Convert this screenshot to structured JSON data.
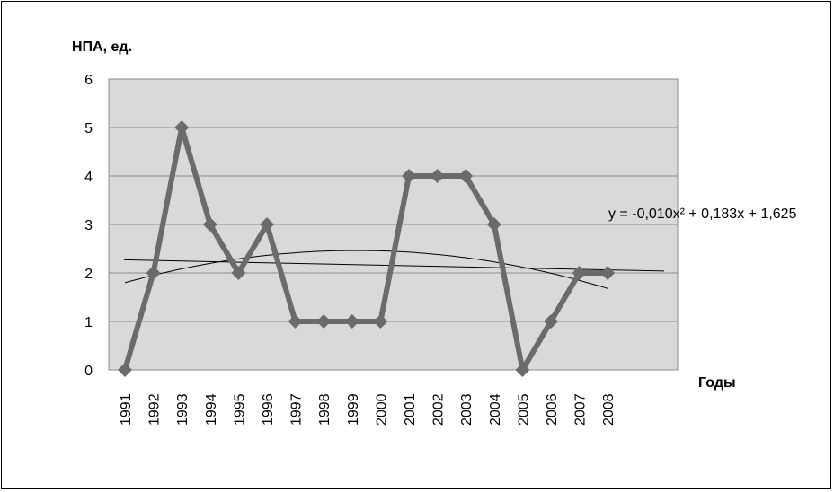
{
  "chart_data": {
    "type": "line",
    "ylabel": "НПА, ед.",
    "xlabel": "Годы",
    "categories": [
      "1991",
      "1992",
      "1993",
      "1994",
      "1995",
      "1996",
      "1997",
      "1998",
      "1999",
      "2000",
      "2001",
      "2002",
      "2003",
      "2004",
      "2005",
      "2006",
      "2007",
      "2008"
    ],
    "series": [
      {
        "values": [
          0,
          2,
          5,
          3,
          2,
          3,
          1,
          1,
          1,
          1,
          4,
          4,
          4,
          3,
          0,
          1,
          2,
          2
        ]
      }
    ],
    "trendlines": {
      "linear": {
        "start": 2.27,
        "end": 2.04
      },
      "polynomial": {
        "a": -0.01,
        "b": 0.183,
        "c": 1.625
      }
    },
    "equation_label": "y = -0,010x² + 0,183x + 1,625",
    "yticks": [
      "0",
      "1",
      "2",
      "3",
      "4",
      "5",
      "6"
    ],
    "ylim": [
      0,
      6
    ],
    "grid": true,
    "colors": {
      "series": "#6b6b6b",
      "plot_bg": "#d9d9d9",
      "grid": "#8c8c8c",
      "trend": "#000000"
    }
  }
}
